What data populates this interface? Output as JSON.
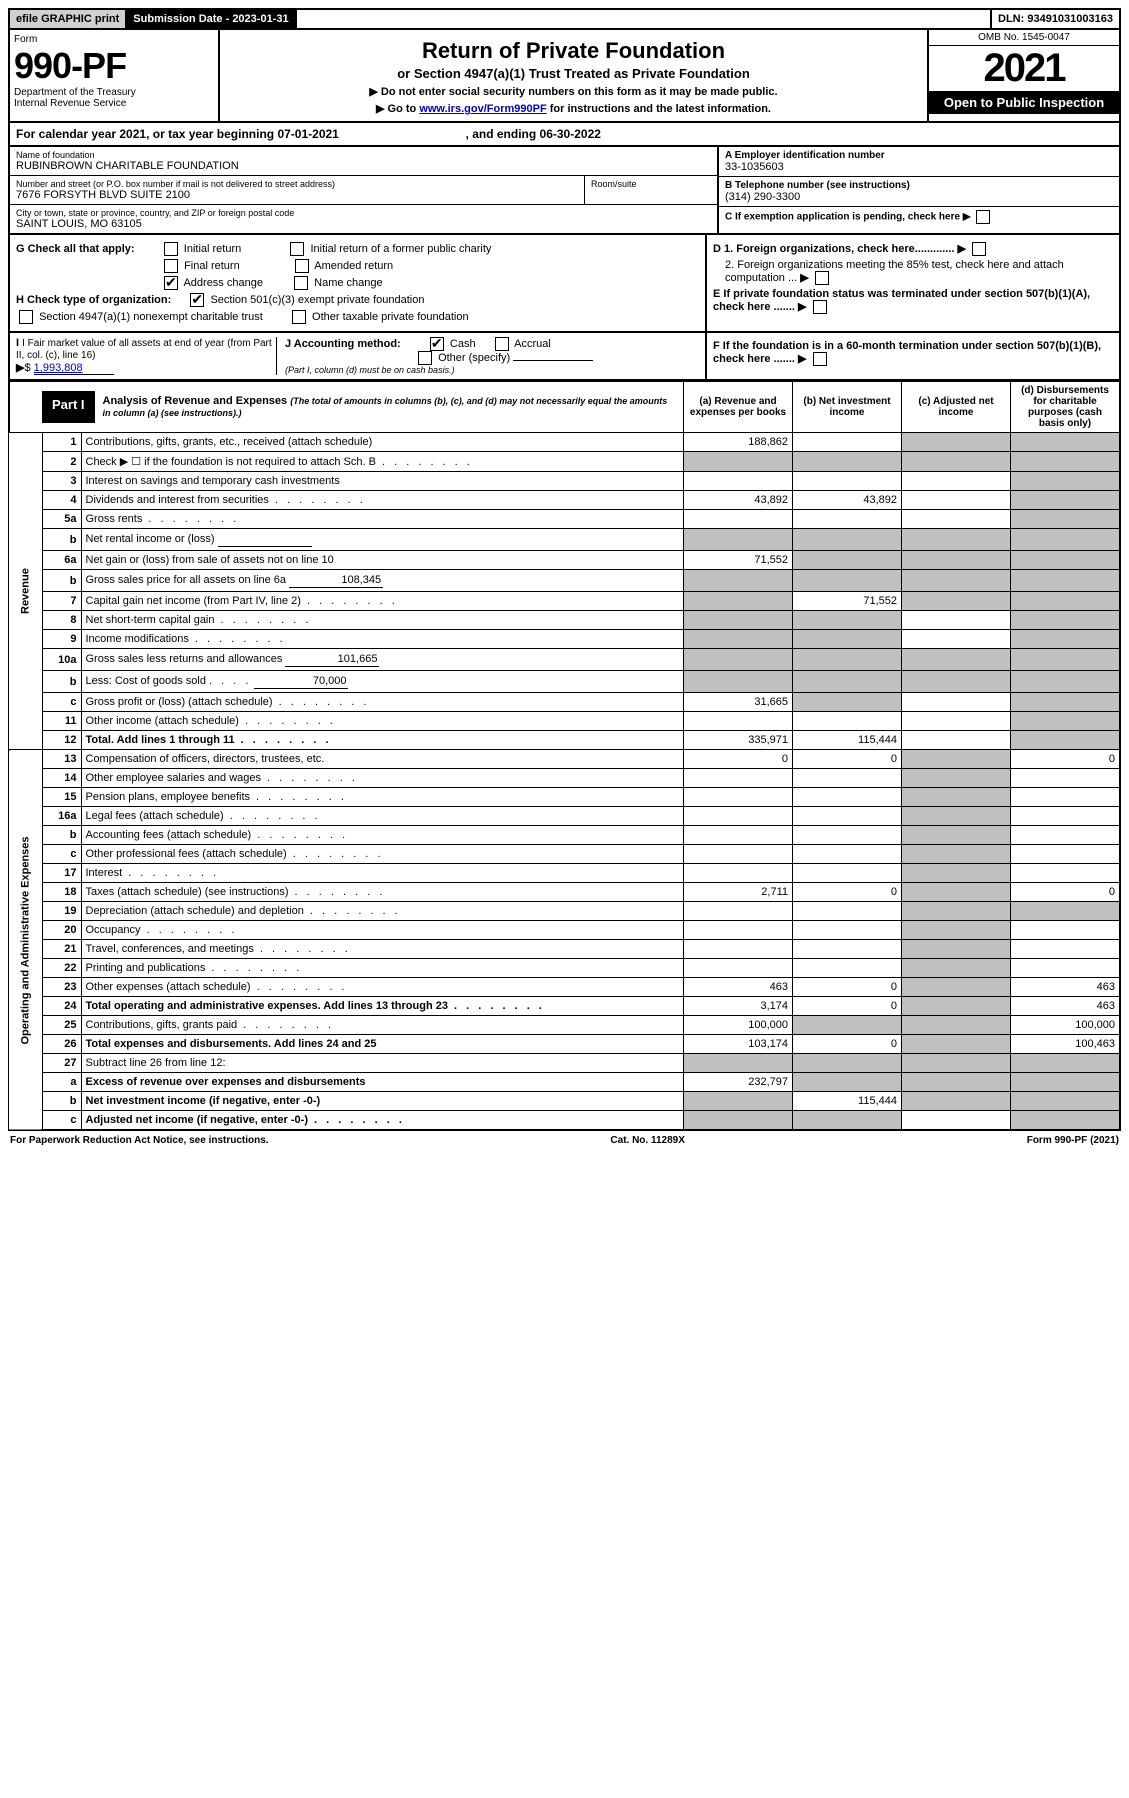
{
  "topbar": {
    "efile": "efile GRAPHIC print",
    "sub_label": "Submission Date - 2023-01-31",
    "dln": "DLN: 93491031003163"
  },
  "header": {
    "form_label": "Form",
    "form_num": "990-PF",
    "dept": "Department of the Treasury\nInternal Revenue Service",
    "title": "Return of Private Foundation",
    "subtitle": "or Section 4947(a)(1) Trust Treated as Private Foundation",
    "note1": "▶ Do not enter social security numbers on this form as it may be made public.",
    "note2_pre": "▶ Go to ",
    "note2_link": "www.irs.gov/Form990PF",
    "note2_post": " for instructions and the latest information.",
    "omb": "OMB No. 1545-0047",
    "year": "2021",
    "open": "Open to Public Inspection"
  },
  "cal_year": {
    "text_pre": "For calendar year 2021, or tax year beginning ",
    "begin": "07-01-2021",
    "text_mid": " , and ending ",
    "end": "06-30-2022"
  },
  "id": {
    "name_lbl": "Name of foundation",
    "name": "RUBINBROWN CHARITABLE FOUNDATION",
    "addr_lbl": "Number and street (or P.O. box number if mail is not delivered to street address)",
    "addr": "7676 FORSYTH BLVD SUITE 2100",
    "room_lbl": "Room/suite",
    "city_lbl": "City or town, state or province, country, and ZIP or foreign postal code",
    "city": "SAINT LOUIS, MO  63105",
    "a_lbl": "A Employer identification number",
    "a_val": "33-1035603",
    "b_lbl": "B Telephone number (see instructions)",
    "b_val": "(314) 290-3300",
    "c_lbl": "C If exemption application is pending, check here",
    "d1_lbl": "D 1. Foreign organizations, check here.............",
    "d2_lbl": "2. Foreign organizations meeting the 85% test, check here and attach computation ...",
    "e_lbl": "E  If private foundation status was terminated under section 507(b)(1)(A), check here .......",
    "f_lbl": "F  If the foundation is in a 60-month termination under section 507(b)(1)(B), check here .......",
    "g_lbl": "G Check all that apply:",
    "g_opts": [
      "Initial return",
      "Final return",
      "Address change",
      "Initial return of a former public charity",
      "Amended return",
      "Name change"
    ],
    "h_lbl": "H Check type of organization:",
    "h_opts": [
      "Section 501(c)(3) exempt private foundation",
      "Section 4947(a)(1) nonexempt charitable trust",
      "Other taxable private foundation"
    ],
    "i_lbl": "I Fair market value of all assets at end of year (from Part II, col. (c), line 16)",
    "i_val": "1,993,808",
    "j_lbl": "J Accounting method:",
    "j_opts": [
      "Cash",
      "Accrual",
      "Other (specify)"
    ],
    "j_note": "(Part I, column (d) must be on cash basis.)"
  },
  "part1": {
    "label": "Part I",
    "title": "Analysis of Revenue and Expenses",
    "title_note": "(The total of amounts in columns (b), (c), and (d) may not necessarily equal the amounts in column (a) (see instructions).)",
    "col_a": "(a) Revenue and expenses per books",
    "col_b": "(b) Net investment income",
    "col_c": "(c) Adjusted net income",
    "col_d": "(d) Disbursements for charitable purposes (cash basis only)"
  },
  "sections": {
    "revenue": "Revenue",
    "expenses": "Operating and Administrative Expenses"
  },
  "rows": [
    {
      "n": "1",
      "d": "Contributions, gifts, grants, etc., received (attach schedule)",
      "a": "188,862",
      "b": "",
      "c": "shade",
      "dd": "shade"
    },
    {
      "n": "2",
      "d": "Check ▶ ☐ if the foundation is not required to attach Sch. B",
      "a": "shade",
      "b": "shade",
      "c": "shade",
      "dd": "shade",
      "dots": true
    },
    {
      "n": "3",
      "d": "Interest on savings and temporary cash investments",
      "a": "",
      "b": "",
      "c": "",
      "dd": "shade"
    },
    {
      "n": "4",
      "d": "Dividends and interest from securities",
      "a": "43,892",
      "b": "43,892",
      "c": "",
      "dd": "shade",
      "dots": true
    },
    {
      "n": "5a",
      "d": "Gross rents",
      "a": "",
      "b": "",
      "c": "",
      "dd": "shade",
      "dots": true
    },
    {
      "n": "b",
      "d": "Net rental income or (loss)",
      "a": "shade",
      "b": "shade",
      "c": "shade",
      "dd": "shade",
      "inline": ""
    },
    {
      "n": "6a",
      "d": "Net gain or (loss) from sale of assets not on line 10",
      "a": "71,552",
      "b": "shade",
      "c": "shade",
      "dd": "shade"
    },
    {
      "n": "b",
      "d": "Gross sales price for all assets on line 6a",
      "a": "shade",
      "b": "shade",
      "c": "shade",
      "dd": "shade",
      "inline": "108,345"
    },
    {
      "n": "7",
      "d": "Capital gain net income (from Part IV, line 2)",
      "a": "shade",
      "b": "71,552",
      "c": "shade",
      "dd": "shade",
      "dots": true
    },
    {
      "n": "8",
      "d": "Net short-term capital gain",
      "a": "shade",
      "b": "shade",
      "c": "",
      "dd": "shade",
      "dots": true
    },
    {
      "n": "9",
      "d": "Income modifications",
      "a": "shade",
      "b": "shade",
      "c": "",
      "dd": "shade",
      "dots": true
    },
    {
      "n": "10a",
      "d": "Gross sales less returns and allowances",
      "a": "shade",
      "b": "shade",
      "c": "shade",
      "dd": "shade",
      "inline": "101,665"
    },
    {
      "n": "b",
      "d": "Less: Cost of goods sold",
      "a": "shade",
      "b": "shade",
      "c": "shade",
      "dd": "shade",
      "inline": "70,000",
      "dots": true
    },
    {
      "n": "c",
      "d": "Gross profit or (loss) (attach schedule)",
      "a": "31,665",
      "b": "shade",
      "c": "",
      "dd": "shade",
      "dots": true
    },
    {
      "n": "11",
      "d": "Other income (attach schedule)",
      "a": "",
      "b": "",
      "c": "",
      "dd": "shade",
      "dots": true
    },
    {
      "n": "12",
      "d": "Total. Add lines 1 through 11",
      "a": "335,971",
      "b": "115,444",
      "c": "",
      "dd": "shade",
      "bold": true,
      "dots": true
    },
    {
      "n": "13",
      "d": "Compensation of officers, directors, trustees, etc.",
      "a": "0",
      "b": "0",
      "c": "shade",
      "dd": "0"
    },
    {
      "n": "14",
      "d": "Other employee salaries and wages",
      "a": "",
      "b": "",
      "c": "shade",
      "dd": "",
      "dots": true
    },
    {
      "n": "15",
      "d": "Pension plans, employee benefits",
      "a": "",
      "b": "",
      "c": "shade",
      "dd": "",
      "dots": true
    },
    {
      "n": "16a",
      "d": "Legal fees (attach schedule)",
      "a": "",
      "b": "",
      "c": "shade",
      "dd": "",
      "dots": true
    },
    {
      "n": "b",
      "d": "Accounting fees (attach schedule)",
      "a": "",
      "b": "",
      "c": "shade",
      "dd": "",
      "dots": true
    },
    {
      "n": "c",
      "d": "Other professional fees (attach schedule)",
      "a": "",
      "b": "",
      "c": "shade",
      "dd": "",
      "dots": true
    },
    {
      "n": "17",
      "d": "Interest",
      "a": "",
      "b": "",
      "c": "shade",
      "dd": "",
      "dots": true
    },
    {
      "n": "18",
      "d": "Taxes (attach schedule) (see instructions)",
      "a": "2,711",
      "b": "0",
      "c": "shade",
      "dd": "0",
      "dots": true
    },
    {
      "n": "19",
      "d": "Depreciation (attach schedule) and depletion",
      "a": "",
      "b": "",
      "c": "shade",
      "dd": "shade",
      "dots": true
    },
    {
      "n": "20",
      "d": "Occupancy",
      "a": "",
      "b": "",
      "c": "shade",
      "dd": "",
      "dots": true
    },
    {
      "n": "21",
      "d": "Travel, conferences, and meetings",
      "a": "",
      "b": "",
      "c": "shade",
      "dd": "",
      "dots": true
    },
    {
      "n": "22",
      "d": "Printing and publications",
      "a": "",
      "b": "",
      "c": "shade",
      "dd": "",
      "dots": true
    },
    {
      "n": "23",
      "d": "Other expenses (attach schedule)",
      "a": "463",
      "b": "0",
      "c": "shade",
      "dd": "463",
      "dots": true
    },
    {
      "n": "24",
      "d": "Total operating and administrative expenses. Add lines 13 through 23",
      "a": "3,174",
      "b": "0",
      "c": "shade",
      "dd": "463",
      "bold": true,
      "dots": true
    },
    {
      "n": "25",
      "d": "Contributions, gifts, grants paid",
      "a": "100,000",
      "b": "shade",
      "c": "shade",
      "dd": "100,000",
      "dots": true
    },
    {
      "n": "26",
      "d": "Total expenses and disbursements. Add lines 24 and 25",
      "a": "103,174",
      "b": "0",
      "c": "shade",
      "dd": "100,463",
      "bold": true
    },
    {
      "n": "27",
      "d": "Subtract line 26 from line 12:",
      "a": "shade",
      "b": "shade",
      "c": "shade",
      "dd": "shade"
    },
    {
      "n": "a",
      "d": "Excess of revenue over expenses and disbursements",
      "a": "232,797",
      "b": "shade",
      "c": "shade",
      "dd": "shade",
      "bold": true
    },
    {
      "n": "b",
      "d": "Net investment income (if negative, enter -0-)",
      "a": "shade",
      "b": "115,444",
      "c": "shade",
      "dd": "shade",
      "bold": true
    },
    {
      "n": "c",
      "d": "Adjusted net income (if negative, enter -0-)",
      "a": "shade",
      "b": "shade",
      "c": "",
      "dd": "shade",
      "bold": true,
      "dots": true
    }
  ],
  "footer": {
    "left": "For Paperwork Reduction Act Notice, see instructions.",
    "mid": "Cat. No. 11289X",
    "right": "Form 990-PF (2021)"
  }
}
